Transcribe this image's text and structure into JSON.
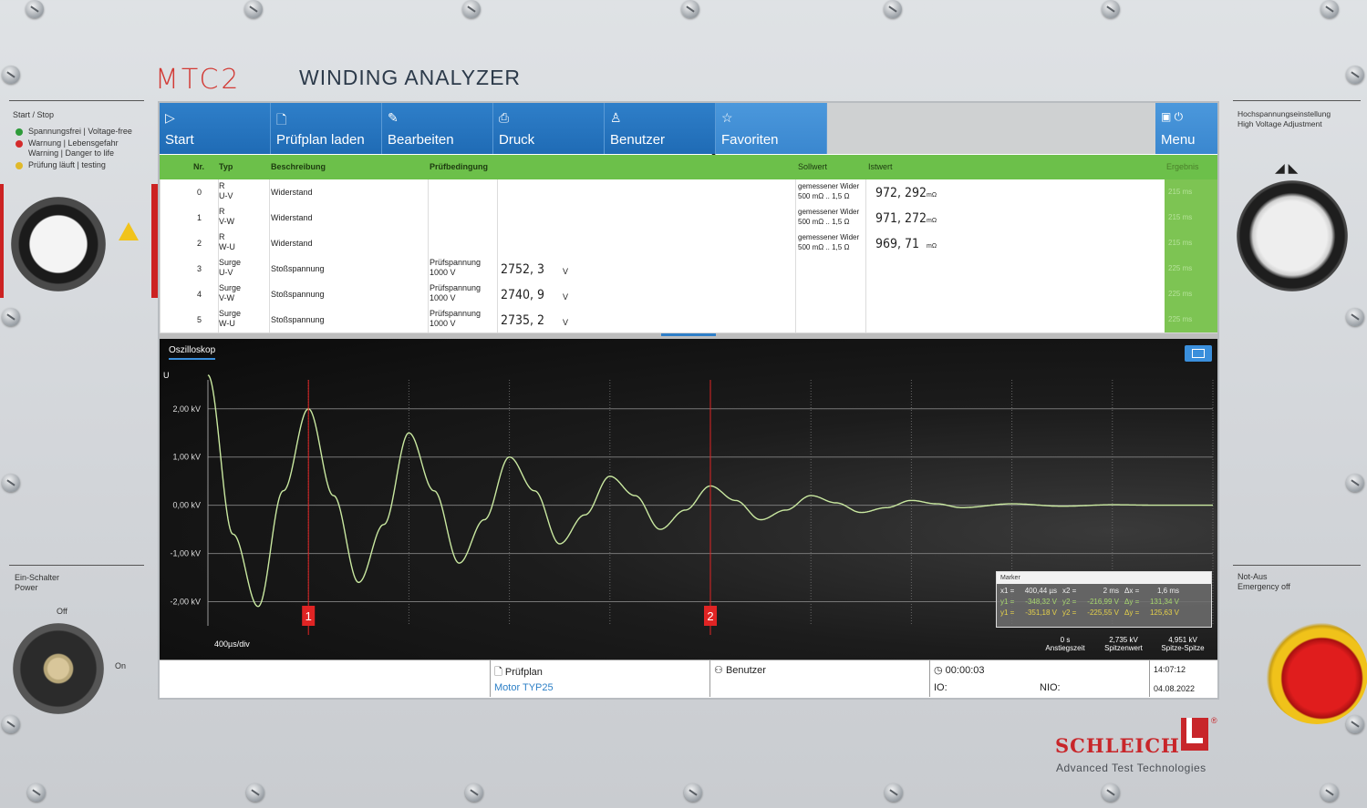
{
  "device": {
    "brand": "MTC2",
    "title": "WINDING ANALYZER",
    "left_panel": {
      "start_stop_label": "Start / Stop",
      "legend": [
        {
          "color": "#2e9b3a",
          "text": "Spannungsfrei | Voltage-free"
        },
        {
          "color": "#d42b2b",
          "text": "Warnung | Lebensgefahr\nWarning | Danger to life"
        },
        {
          "color": "#e0b92a",
          "text": "Prüfung läuft | testing"
        }
      ],
      "power_label": "Ein-Schalter\nPower",
      "off_label": "Off",
      "on_label": "On"
    },
    "right_panel": {
      "hv_label": "Hochspannungseinstellung\nHigh Voltage Adjustment",
      "estop_label": "Not-Aus\nEmergency off"
    },
    "maker": {
      "name": "SCHLEICH",
      "reg": "®",
      "tagline": "Advanced Test Technologies"
    }
  },
  "toolbar": {
    "buttons": [
      {
        "label": "Start",
        "icon": "play-icon",
        "glyph": "▷"
      },
      {
        "label": "Prüfplan laden",
        "icon": "document-icon",
        "glyph": "🗋"
      },
      {
        "label": "Bearbeiten",
        "icon": "pencil-icon",
        "glyph": "✎"
      },
      {
        "label": "Druck",
        "icon": "printer-icon",
        "glyph": "⎙"
      },
      {
        "label": "Benutzer",
        "icon": "user-icon",
        "glyph": "♙"
      },
      {
        "label": "Favoriten",
        "icon": "star-icon",
        "glyph": "☆"
      }
    ],
    "menu": {
      "label": "Menu",
      "glyph": "▣ ⏻"
    }
  },
  "table": {
    "headers": {
      "nr": "Nr.",
      "typ": "Typ",
      "beschreibung": "Beschreibung",
      "pruefbedingung": "Prüfbedingung",
      "sollwert": "Sollwert",
      "istwert": "Istwert",
      "ergebnis": "Ergebnis"
    },
    "rows": [
      {
        "nr": "0",
        "typ": "R\nU-V",
        "beschreibung": "Widerstand",
        "pruefbedingung": "",
        "value": "",
        "unit": "",
        "soll": "gemessener Wider\n500 mΩ .. 1,5 Ω",
        "ist": "972, 292",
        "ist_unit": "mΩ",
        "ergebnis": "215 ms"
      },
      {
        "nr": "1",
        "typ": "R\nV-W",
        "beschreibung": "Widerstand",
        "pruefbedingung": "",
        "value": "",
        "unit": "",
        "soll": "gemessener Wider\n500 mΩ .. 1,5 Ω",
        "ist": "971, 272",
        "ist_unit": "mΩ",
        "ergebnis": "215 ms"
      },
      {
        "nr": "2",
        "typ": "R\nW-U",
        "beschreibung": "Widerstand",
        "pruefbedingung": "",
        "value": "",
        "unit": "",
        "soll": "gemessener Wider\n500 mΩ .. 1,5 Ω",
        "ist": "969, 71",
        "ist_unit": "mΩ",
        "ergebnis": "215 ms"
      },
      {
        "nr": "3",
        "typ": "Surge\nU-V",
        "beschreibung": "Stoßspannung",
        "pruefbedingung": "Prüfspannung\n1000 V",
        "value": "2752, 3",
        "unit": "V",
        "soll": "",
        "ist": "",
        "ist_unit": "",
        "ergebnis": "225 ms"
      },
      {
        "nr": "4",
        "typ": "Surge\nV-W",
        "beschreibung": "Stoßspannung",
        "pruefbedingung": "Prüfspannung\n1000 V",
        "value": "2740, 9",
        "unit": "V",
        "soll": "",
        "ist": "",
        "ist_unit": "",
        "ergebnis": "225 ms"
      },
      {
        "nr": "5",
        "typ": "Surge\nW-U",
        "beschreibung": "Stoßspannung",
        "pruefbedingung": "Prüfspannung\n1000 V",
        "value": "2735, 2",
        "unit": "V",
        "soll": "",
        "ist": "",
        "ist_unit": "",
        "ergebnis": "225 ms"
      }
    ]
  },
  "oscilloscope": {
    "tab_label": "Oszilloskop",
    "y_axis_label": "U",
    "time_div_label": "400µs/div",
    "marker_box": {
      "title": "Marker",
      "lines": [
        [
          "x1 =",
          "400,44 µs",
          "x2 =",
          "2 ms",
          "Δx =",
          "1,6 ms"
        ],
        [
          "y1 =",
          "-348,32 V",
          "y2 =",
          "-216,99 V",
          "Δy =",
          "131,34 V"
        ],
        [
          "y1 =",
          "-351,18 V",
          "y2 =",
          "-225,55 V",
          "Δy =",
          "125,63 V"
        ]
      ]
    },
    "measurements": [
      {
        "value": "0 s",
        "label": "Anstiegszeit"
      },
      {
        "value": "2,735 kV",
        "label": "Spitzenwert"
      },
      {
        "value": "4,951 kV",
        "label": "Spitze-Spitze"
      }
    ],
    "cursor_labels": [
      "1",
      "2"
    ],
    "cursor_color": "#e02424",
    "trace_color": "#c9e8a0"
  },
  "chart_data": {
    "type": "line",
    "title": "",
    "xlabel": "",
    "ylabel": "U",
    "y_tick_labels": [
      "2,00 kV",
      "1,00 kV",
      "0,00 kV",
      "-1,00 kV",
      "-2,00 kV"
    ],
    "ylim": [
      -2.5,
      2.6
    ],
    "x_units": "µs",
    "xlim": [
      0,
      4000
    ],
    "grid": true,
    "series": [
      {
        "x": [
          0,
          100,
          200,
          300,
          400,
          500,
          600,
          700,
          800,
          900,
          1000,
          1100,
          1200,
          1300,
          1400,
          1500,
          1600,
          1700,
          1800,
          1900,
          2000,
          2100,
          2200,
          2300,
          2400,
          2500,
          2600,
          2700,
          2800,
          2900,
          3000,
          3200,
          3400,
          3600,
          3800,
          4000
        ],
        "values": [
          2.7,
          -0.6,
          -2.1,
          0.3,
          2.0,
          0.2,
          -1.6,
          -0.4,
          1.5,
          0.3,
          -1.2,
          -0.3,
          1.0,
          0.3,
          -0.8,
          -0.2,
          0.6,
          0.2,
          -0.5,
          -0.1,
          0.4,
          0.1,
          -0.3,
          -0.1,
          0.2,
          0.05,
          -0.15,
          -0.05,
          0.1,
          0.03,
          -0.05,
          0.03,
          -0.02,
          0.01,
          0.0,
          0.0
        ]
      }
    ],
    "cursors_x": [
      400,
      2000
    ]
  },
  "statusbar": {
    "pruefplan_label": "Prüfplan",
    "pruefplan_value": "Motor TYP25",
    "benutzer_label": "Benutzer",
    "timer": "00:00:03",
    "io_label": "IO:",
    "nio_label": "NIO:",
    "time": "14:07:12",
    "date": "04.08.2022"
  }
}
